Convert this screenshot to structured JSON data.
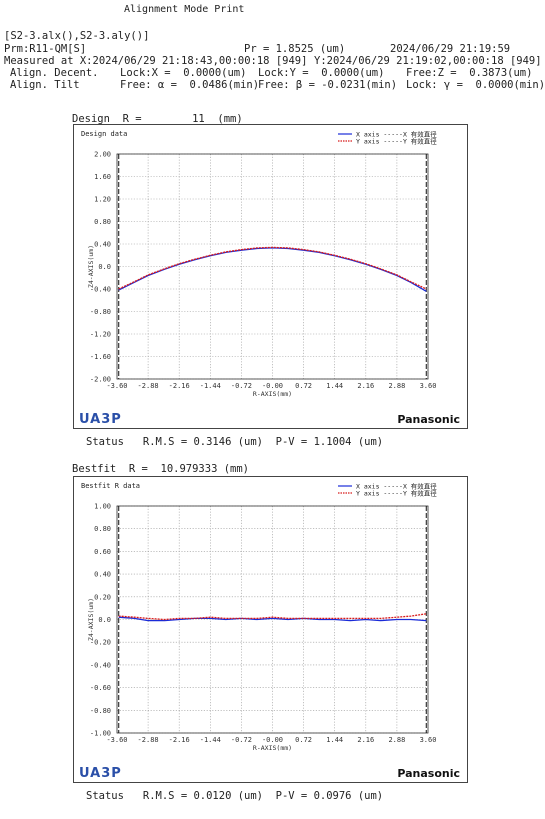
{
  "header": {
    "title": "Alignment Mode Print",
    "files": "[S2-3.alx(),S2-3.aly()]",
    "prm": "Prm:R11-QM[S]",
    "pr": "Pr = 1.8525 (um)",
    "print_time": "2024/06/29 21:19:59",
    "measured_x": "Measured at X:2024/06/29 21:18:43,00:00:18 [949]",
    "measured_y": "Y:2024/06/29 21:19:02,00:00:18 [949]",
    "decent_label": "Align. Decent.",
    "decent_x": "Lock:X =  0.0000(um)",
    "decent_y": "Lock:Y =  0.0000(um)",
    "decent_z": "Free:Z =  0.3873(um)",
    "tilt_label": "Align. Tilt",
    "tilt_a": "Free: α =  0.0486(min)",
    "tilt_b": "Free: β = -0.0231(min)",
    "tilt_g": "Lock: γ =  0.0000(min)"
  },
  "design": {
    "label": "Design  R =        11  (mm)",
    "status": "Status   R.M.S = 0.3146 (um)  P-V = 1.1004 (um)"
  },
  "bestfit": {
    "label": "Bestfit  R =  10.979333 (mm)",
    "status": "Status   R.M.S = 0.0120 (um)  P-V = 0.0976 (um)"
  },
  "chart_data": [
    {
      "type": "line",
      "title": "Design data",
      "xlabel": "R-AXIS(mm)",
      "ylabel": "Z4-AXIS(um)",
      "xlim": [
        -3.6,
        3.6
      ],
      "ylim": [
        -2.0,
        2.0
      ],
      "xticks": [
        "-3.60",
        "-2.88",
        "-2.16",
        "-1.44",
        "-0.72",
        "-0.00",
        "0.72",
        "1.44",
        "2.16",
        "2.88",
        "3.60"
      ],
      "yticks": [
        "2.00",
        "1.60",
        "1.20",
        "0.80",
        "0.40",
        "0.0",
        "-0.40",
        "-0.80",
        "-1.20",
        "-1.60",
        "-2.00"
      ],
      "grid": true,
      "legend": "top-right",
      "effective_radius": 3.56,
      "series": [
        {
          "name": "X axis",
          "color": "#1a2bd8",
          "x": [
            -3.56,
            -3.2,
            -2.88,
            -2.5,
            -2.16,
            -1.8,
            -1.44,
            -1.08,
            -0.72,
            -0.36,
            0,
            0.36,
            0.72,
            1.08,
            1.44,
            1.8,
            2.16,
            2.5,
            2.88,
            3.2,
            3.56
          ],
          "y": [
            -0.42,
            -0.28,
            -0.16,
            -0.05,
            0.04,
            0.12,
            0.19,
            0.25,
            0.29,
            0.32,
            0.33,
            0.32,
            0.29,
            0.25,
            0.19,
            0.12,
            0.04,
            -0.05,
            -0.16,
            -0.28,
            -0.44
          ]
        },
        {
          "name": "Y axis",
          "color": "#d81a1a",
          "x": [
            -3.56,
            -3.2,
            -2.88,
            -2.5,
            -2.16,
            -1.8,
            -1.44,
            -1.08,
            -0.72,
            -0.36,
            0,
            0.36,
            0.72,
            1.08,
            1.44,
            1.8,
            2.16,
            2.5,
            2.88,
            3.2,
            3.56
          ],
          "y": [
            -0.4,
            -0.27,
            -0.15,
            -0.04,
            0.05,
            0.13,
            0.2,
            0.26,
            0.3,
            0.33,
            0.34,
            0.33,
            0.3,
            0.26,
            0.2,
            0.13,
            0.05,
            -0.04,
            -0.15,
            -0.27,
            -0.4
          ]
        }
      ],
      "legend_entries": [
        "X axis -----X 有效直径",
        "Y axis -----Y 有效直径"
      ]
    },
    {
      "type": "line",
      "title": "Bestfit R data",
      "xlabel": "R-AXIS(mm)",
      "ylabel": "Z4-AXIS(um)",
      "xlim": [
        -3.6,
        3.6
      ],
      "ylim": [
        -1.0,
        1.0
      ],
      "xticks": [
        "-3.60",
        "-2.88",
        "-2.16",
        "-1.44",
        "-0.72",
        "-0.00",
        "0.72",
        "1.44",
        "2.16",
        "2.88",
        "3.60"
      ],
      "yticks": [
        "1.00",
        "0.80",
        "0.60",
        "0.40",
        "0.20",
        "0.0",
        "-0.20",
        "-0.40",
        "-0.60",
        "-0.80",
        "-1.00"
      ],
      "grid": true,
      "legend": "top-right",
      "effective_radius": 3.56,
      "series": [
        {
          "name": "X axis",
          "color": "#1a2bd8",
          "x": [
            -3.56,
            -3.2,
            -2.88,
            -2.5,
            -2.16,
            -1.8,
            -1.44,
            -1.08,
            -0.72,
            -0.36,
            0,
            0.36,
            0.72,
            1.08,
            1.44,
            1.8,
            2.16,
            2.5,
            2.88,
            3.2,
            3.56
          ],
          "y": [
            0.02,
            0.01,
            -0.01,
            -0.01,
            0.0,
            0.01,
            0.01,
            0.0,
            0.01,
            0.0,
            0.01,
            0.0,
            0.01,
            0.0,
            0.0,
            -0.01,
            0.0,
            -0.01,
            0.0,
            0.0,
            -0.01
          ]
        },
        {
          "name": "Y axis",
          "color": "#d81a1a",
          "x": [
            -3.56,
            -3.2,
            -2.88,
            -2.5,
            -2.16,
            -1.8,
            -1.44,
            -1.08,
            -0.72,
            -0.36,
            0,
            0.36,
            0.72,
            1.08,
            1.44,
            1.8,
            2.16,
            2.5,
            2.88,
            3.2,
            3.56
          ],
          "y": [
            0.03,
            0.02,
            0.01,
            0.0,
            0.01,
            0.01,
            0.02,
            0.01,
            0.01,
            0.01,
            0.02,
            0.01,
            0.01,
            0.01,
            0.01,
            0.01,
            0.01,
            0.01,
            0.02,
            0.03,
            0.05
          ]
        }
      ],
      "legend_entries": [
        "X axis -----X 有效直径",
        "Y axis -----Y 有效直径"
      ]
    }
  ],
  "brand": {
    "logo": "UA3P",
    "maker": "Panasonic"
  }
}
